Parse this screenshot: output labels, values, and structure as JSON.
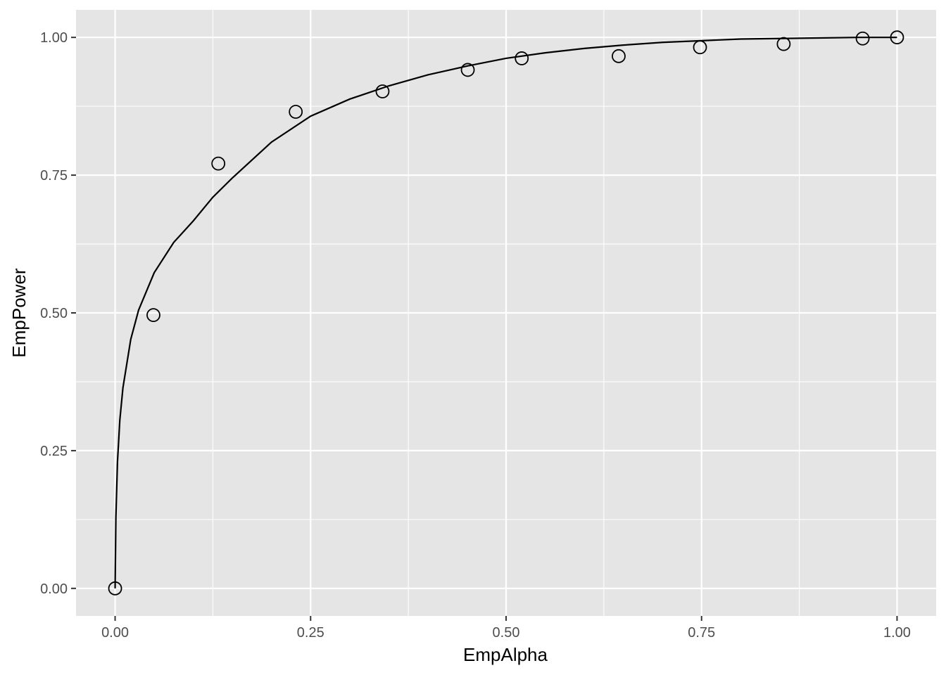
{
  "chart_data": {
    "type": "scatter",
    "title": "",
    "xlabel": "EmpAlpha",
    "ylabel": "EmpPower",
    "xlim": [
      -0.05,
      1.05
    ],
    "ylim": [
      -0.05,
      1.05
    ],
    "x_ticks": [
      0,
      0.25,
      0.5,
      0.75,
      1
    ],
    "x_tick_labels": [
      "0.00",
      "0.25",
      "0.50",
      "0.75",
      "1.00"
    ],
    "y_ticks": [
      0,
      0.25,
      0.5,
      0.75,
      1
    ],
    "y_tick_labels": [
      "0.00",
      "0.25",
      "0.50",
      "0.75",
      "1.00"
    ],
    "grid": true,
    "legend": "none",
    "panel_color": "#e5e5e5",
    "grid_color": "#ffffff",
    "series": [
      {
        "kind": "points",
        "x": [
          0.0,
          0.049,
          0.132,
          0.231,
          0.342,
          0.451,
          0.52,
          0.644,
          0.748,
          0.855,
          0.956,
          1.0
        ],
        "y": [
          0.0,
          0.496,
          0.771,
          0.865,
          0.902,
          0.941,
          0.962,
          0.966,
          0.982,
          0.988,
          0.998,
          1.0
        ]
      },
      {
        "kind": "curve",
        "x": [
          0.0,
          0.001,
          0.003,
          0.006,
          0.01,
          0.02,
          0.03,
          0.05,
          0.075,
          0.1,
          0.125,
          0.15,
          0.2,
          0.25,
          0.3,
          0.35,
          0.4,
          0.45,
          0.5,
          0.55,
          0.6,
          0.65,
          0.7,
          0.75,
          0.8,
          0.85,
          0.9,
          0.95,
          1.0
        ],
        "y": [
          0.0,
          0.13,
          0.229,
          0.305,
          0.364,
          0.452,
          0.505,
          0.573,
          0.628,
          0.667,
          0.71,
          0.745,
          0.81,
          0.857,
          0.888,
          0.912,
          0.932,
          0.948,
          0.962,
          0.972,
          0.98,
          0.986,
          0.991,
          0.994,
          0.997,
          0.998,
          0.999,
          1.0,
          1.0
        ]
      }
    ]
  }
}
